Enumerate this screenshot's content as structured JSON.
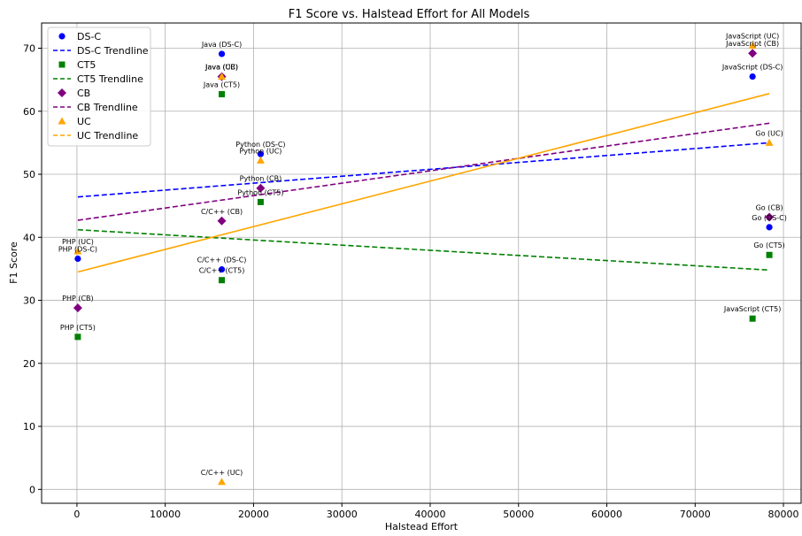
{
  "chart_data": {
    "type": "scatter",
    "title": "F1 Score vs. Halstead Effort for All Models",
    "xlabel": "Halstead Effort",
    "ylabel": "F1 Score",
    "xlim": [
      -4000,
      82000
    ],
    "ylim": [
      -2.2,
      74
    ],
    "xticks": [
      0,
      10000,
      20000,
      30000,
      40000,
      50000,
      60000,
      70000,
      80000
    ],
    "yticks": [
      0,
      10,
      20,
      30,
      40,
      50,
      60,
      70
    ],
    "grid": true,
    "legend_position": "top-left",
    "legend": [
      "DS-C",
      "DS-C Trendline",
      "CT5",
      "CT5 Trendline",
      "CB",
      "CB Trendline",
      "UC",
      "UC Trendline"
    ],
    "series": [
      {
        "name": "DS-C",
        "marker": "circle",
        "color": "#0000ff",
        "points": [
          {
            "label": "PHP (DS-C)",
            "x": 100,
            "y": 36.6
          },
          {
            "label": "Java (DS-C)",
            "x": 16400,
            "y": 69.1
          },
          {
            "label": "Python (DS-C)",
            "x": 20800,
            "y": 53.2
          },
          {
            "label": "C/C++ (DS-C)",
            "x": 16400,
            "y": 34.9
          },
          {
            "label": "JavaScript (DS-C)",
            "x": 76500,
            "y": 65.5
          },
          {
            "label": "Go (DS-C)",
            "x": 78400,
            "y": 41.6
          }
        ],
        "trendline": {
          "name": "DS-C Trendline",
          "x": [
            100,
            78400
          ],
          "y": [
            46.4,
            55.0
          ],
          "color": "#0000ff"
        }
      },
      {
        "name": "CT5",
        "marker": "square",
        "color": "#008000",
        "points": [
          {
            "label": "PHP (CT5)",
            "x": 100,
            "y": 24.2
          },
          {
            "label": "Java (CT5)",
            "x": 16400,
            "y": 62.7
          },
          {
            "label": "Python (CT5)",
            "x": 20800,
            "y": 45.6
          },
          {
            "label": "C/C++ (CT5)",
            "x": 16400,
            "y": 33.2
          },
          {
            "label": "JavaScript (CT5)",
            "x": 76500,
            "y": 27.1
          },
          {
            "label": "Go (CT5)",
            "x": 78400,
            "y": 37.2
          }
        ],
        "trendline": {
          "name": "CT5 Trendline",
          "x": [
            100,
            78400
          ],
          "y": [
            41.2,
            34.8
          ],
          "color": "#008000"
        }
      },
      {
        "name": "CB",
        "marker": "diamond",
        "color": "#800080",
        "points": [
          {
            "label": "PHP (CB)",
            "x": 100,
            "y": 28.8
          },
          {
            "label": "Java (CB)",
            "x": 16400,
            "y": 65.5
          },
          {
            "label": "Python (CB)",
            "x": 20800,
            "y": 47.8
          },
          {
            "label": "C/C++ (CB)",
            "x": 16400,
            "y": 42.6
          },
          {
            "label": "JavaScript (CB)",
            "x": 76500,
            "y": 69.2
          },
          {
            "label": "Go (CB)",
            "x": 78400,
            "y": 43.2
          }
        ],
        "trendline": {
          "name": "CB Trendline",
          "x": [
            100,
            78400
          ],
          "y": [
            42.7,
            58.1
          ],
          "color": "#800080"
        }
      },
      {
        "name": "UC",
        "marker": "triangle",
        "color": "#ffa500",
        "points": [
          {
            "label": "PHP (UC)",
            "x": 100,
            "y": 37.8
          },
          {
            "label": "Java (UC)",
            "x": 16400,
            "y": 65.5
          },
          {
            "label": "Python (UC)",
            "x": 20800,
            "y": 52.2
          },
          {
            "label": "C/C++ (UC)",
            "x": 16400,
            "y": 1.2
          },
          {
            "label": "JavaScript (UC)",
            "x": 76500,
            "y": 70.4
          },
          {
            "label": "Go (UC)",
            "x": 78400,
            "y": 55.0
          }
        ],
        "trendline": {
          "name": "UC Trendline",
          "x": [
            100,
            78400
          ],
          "y": [
            34.5,
            62.8
          ],
          "color": "#ffa500"
        }
      }
    ]
  }
}
